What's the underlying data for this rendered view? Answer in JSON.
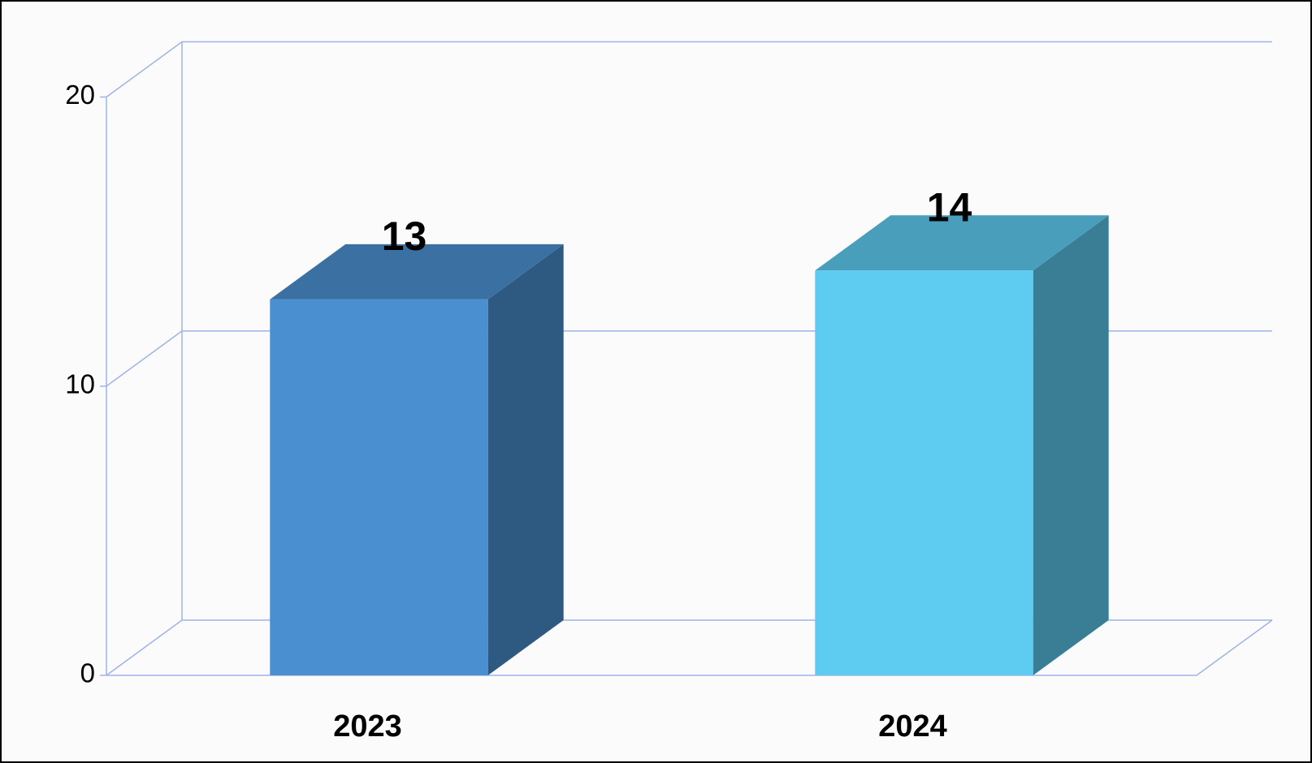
{
  "chart_data": {
    "type": "bar3d",
    "categories": [
      "2023",
      "2024"
    ],
    "values": [
      13,
      14
    ],
    "colors": [
      "#4a8fd0",
      "#5ecbf1"
    ],
    "ylim": [
      0,
      20
    ],
    "yticks": [
      0,
      10,
      20
    ],
    "grid": true
  }
}
